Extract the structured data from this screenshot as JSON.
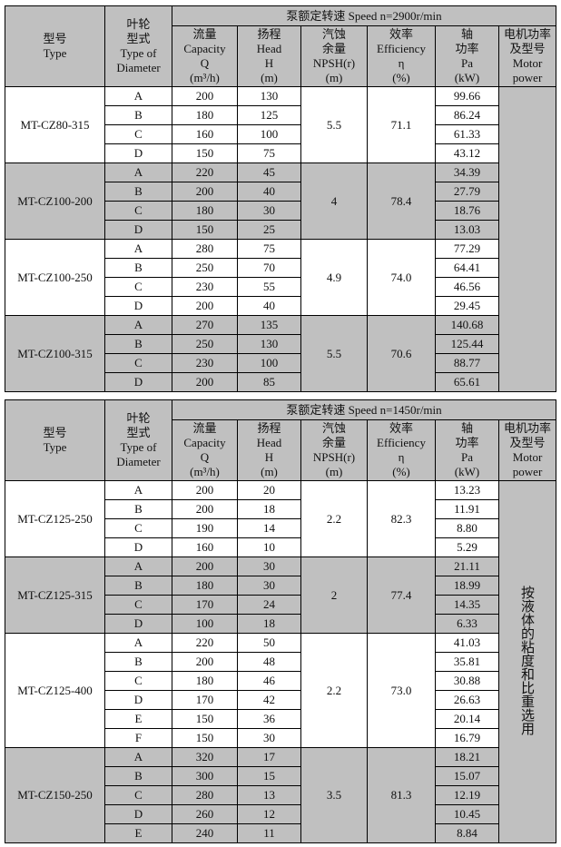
{
  "tables": [
    {
      "speed_header": "泵额定转速 Speed n=2900r/min",
      "headers": {
        "type": [
          "型号",
          "Type"
        ],
        "diameter": [
          "叶轮",
          "型式",
          "Type of",
          "Diameter"
        ],
        "capacity": [
          "流量",
          "Capacity",
          "Q",
          "(m³/h)"
        ],
        "head": [
          "扬程",
          "Head",
          "H",
          "(m)"
        ],
        "npsh": [
          "汽蚀",
          "余量",
          "NPSH(r)",
          "(m)"
        ],
        "efficiency": [
          "效率",
          "Efficiency",
          "η",
          "(%)"
        ],
        "power": [
          "轴",
          "功率",
          "Pa",
          "(kW)"
        ],
        "motor": [
          "电机功率",
          "及型号",
          "Motor",
          "power"
        ]
      },
      "motor_note": "",
      "groups": [
        {
          "model": "MT-CZ80-315",
          "npsh": "5.5",
          "efficiency": "71.1",
          "rows": [
            {
              "d": "A",
              "q": "200",
              "h": "130",
              "pa": "99.66"
            },
            {
              "d": "B",
              "q": "180",
              "h": "125",
              "pa": "86.24"
            },
            {
              "d": "C",
              "q": "160",
              "h": "100",
              "pa": "61.33"
            },
            {
              "d": "D",
              "q": "150",
              "h": "75",
              "pa": "43.12"
            }
          ]
        },
        {
          "model": "MT-CZ100-200",
          "npsh": "4",
          "efficiency": "78.4",
          "rows": [
            {
              "d": "A",
              "q": "220",
              "h": "45",
              "pa": "34.39"
            },
            {
              "d": "B",
              "q": "200",
              "h": "40",
              "pa": "27.79"
            },
            {
              "d": "C",
              "q": "180",
              "h": "30",
              "pa": "18.76"
            },
            {
              "d": "D",
              "q": "150",
              "h": "25",
              "pa": "13.03"
            }
          ]
        },
        {
          "model": "MT-CZ100-250",
          "npsh": "4.9",
          "efficiency": "74.0",
          "rows": [
            {
              "d": "A",
              "q": "280",
              "h": "75",
              "pa": "77.29"
            },
            {
              "d": "B",
              "q": "250",
              "h": "70",
              "pa": "64.41"
            },
            {
              "d": "C",
              "q": "230",
              "h": "55",
              "pa": "46.56"
            },
            {
              "d": "D",
              "q": "200",
              "h": "40",
              "pa": "29.45"
            }
          ]
        },
        {
          "model": "MT-CZ100-315",
          "npsh": "5.5",
          "efficiency": "70.6",
          "rows": [
            {
              "d": "A",
              "q": "270",
              "h": "135",
              "pa": "140.68"
            },
            {
              "d": "B",
              "q": "250",
              "h": "130",
              "pa": "125.44"
            },
            {
              "d": "C",
              "q": "230",
              "h": "100",
              "pa": "88.77"
            },
            {
              "d": "D",
              "q": "200",
              "h": "85",
              "pa": "65.61"
            }
          ]
        }
      ]
    },
    {
      "speed_header": "泵额定转速 Speed n=1450r/min",
      "headers": {
        "type": [
          "型号",
          "Type"
        ],
        "diameter": [
          "叶轮",
          "型式",
          "Type of",
          "Diameter"
        ],
        "capacity": [
          "流量",
          "Capacity",
          "Q",
          "(m³/h)"
        ],
        "head": [
          "扬程",
          "Head",
          "H",
          "(m)"
        ],
        "npsh": [
          "汽蚀",
          "余量",
          "NPSH(r)",
          "(m)"
        ],
        "efficiency": [
          "效率",
          "Efficiency",
          "η",
          "(%)"
        ],
        "power": [
          "轴",
          "功率",
          "Pa",
          "(kW)"
        ],
        "motor": [
          "电机功率",
          "及型号",
          "Motor",
          "power"
        ]
      },
      "motor_note": "按液体的粘度和比重选用",
      "groups": [
        {
          "model": "MT-CZ125-250",
          "npsh": "2.2",
          "efficiency": "82.3",
          "rows": [
            {
              "d": "A",
              "q": "200",
              "h": "20",
              "pa": "13.23"
            },
            {
              "d": "B",
              "q": "200",
              "h": "18",
              "pa": "11.91"
            },
            {
              "d": "C",
              "q": "190",
              "h": "14",
              "pa": "8.80"
            },
            {
              "d": "D",
              "q": "160",
              "h": "10",
              "pa": "5.29"
            }
          ]
        },
        {
          "model": "MT-CZ125-315",
          "npsh": "2",
          "efficiency": "77.4",
          "rows": [
            {
              "d": "A",
              "q": "200",
              "h": "30",
              "pa": "21.11"
            },
            {
              "d": "B",
              "q": "180",
              "h": "30",
              "pa": "18.99"
            },
            {
              "d": "C",
              "q": "170",
              "h": "24",
              "pa": "14.35"
            },
            {
              "d": "D",
              "q": "100",
              "h": "18",
              "pa": "6.33"
            }
          ]
        },
        {
          "model": "MT-CZ125-400",
          "npsh": "2.2",
          "efficiency": "73.0",
          "rows": [
            {
              "d": "A",
              "q": "220",
              "h": "50",
              "pa": "41.03"
            },
            {
              "d": "B",
              "q": "200",
              "h": "48",
              "pa": "35.81"
            },
            {
              "d": "C",
              "q": "180",
              "h": "46",
              "pa": "30.88"
            },
            {
              "d": "D",
              "q": "170",
              "h": "42",
              "pa": "26.63"
            },
            {
              "d": "E",
              "q": "150",
              "h": "36",
              "pa": "20.14"
            },
            {
              "d": "F",
              "q": "150",
              "h": "30",
              "pa": "16.79"
            }
          ]
        },
        {
          "model": "MT-CZ150-250",
          "npsh": "3.5",
          "efficiency": "81.3",
          "rows": [
            {
              "d": "A",
              "q": "320",
              "h": "17",
              "pa": "18.21"
            },
            {
              "d": "B",
              "q": "300",
              "h": "15",
              "pa": "15.07"
            },
            {
              "d": "C",
              "q": "280",
              "h": "13",
              "pa": "12.19"
            },
            {
              "d": "D",
              "q": "260",
              "h": "12",
              "pa": "10.45"
            },
            {
              "d": "E",
              "q": "240",
              "h": "11",
              "pa": "8.84"
            }
          ]
        }
      ]
    }
  ]
}
